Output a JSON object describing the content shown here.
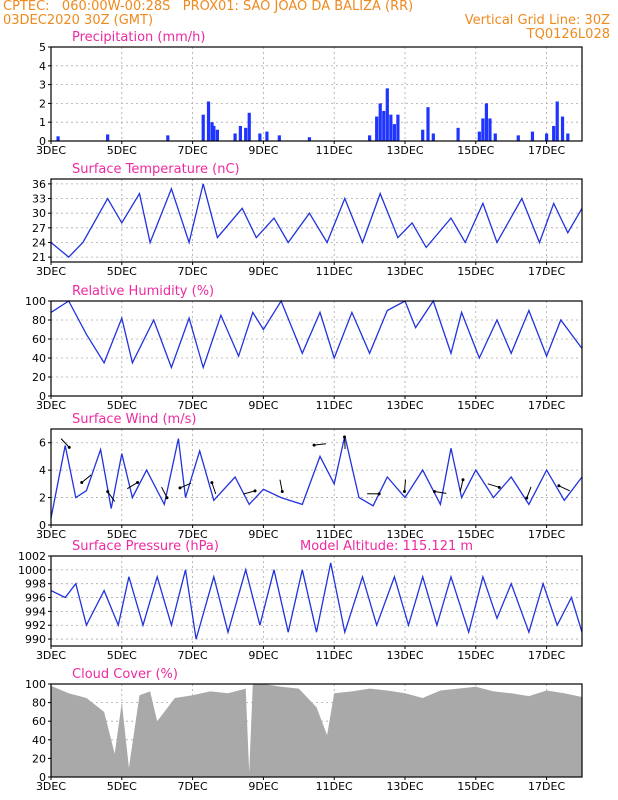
{
  "header": {
    "line1_left": "CPTEC:   060:00W-00:28S   PROX01: SAO JOAO DA BALIZA (RR)",
    "line2_left": "03DEC2020 30Z (GMT)",
    "line2_right": "Vertical Grid Line: 30Z",
    "line3_right": "TQ0126L028",
    "model_altitude": "Model Altitude: 115.121 m"
  },
  "colors": {
    "header": "#ee8a1e",
    "title": "#ee2aa0",
    "line": "#2233dd",
    "bar": "#1f35ff",
    "cloud": "#a9a9a9"
  },
  "x_ticks": [
    "3DEC",
    "5DEC",
    "7DEC",
    "9DEC",
    "11DEC",
    "13DEC",
    "15DEC",
    "17DEC"
  ],
  "chart_data": [
    {
      "type": "bar",
      "title": "Precipitation (mm/h)",
      "x_range": [
        "3DEC",
        "18DEC"
      ],
      "ylim": [
        0,
        5
      ],
      "y_ticks": [
        "0",
        "1",
        "2",
        "3",
        "4",
        "5"
      ],
      "x": [
        3.2,
        4.6,
        6.3,
        7.3,
        7.45,
        7.55,
        7.6,
        7.7,
        8.2,
        8.35,
        8.5,
        8.6,
        8.9,
        9.1,
        9.45,
        10.3,
        12.0,
        12.2,
        12.3,
        12.4,
        12.5,
        12.6,
        12.7,
        12.8,
        13.5,
        13.65,
        13.8,
        14.5,
        15.1,
        15.2,
        15.3,
        15.4,
        15.55,
        16.2,
        16.6,
        17.0,
        17.2,
        17.3,
        17.45,
        17.6
      ],
      "values": [
        0.25,
        0.35,
        0.3,
        1.4,
        2.1,
        1.0,
        0.8,
        0.6,
        0.4,
        0.8,
        0.7,
        1.5,
        0.4,
        0.5,
        0.3,
        0.2,
        0.3,
        1.3,
        2.0,
        1.6,
        2.8,
        1.4,
        0.9,
        1.4,
        0.6,
        1.8,
        0.4,
        0.7,
        0.5,
        1.2,
        2.0,
        1.2,
        0.4,
        0.3,
        0.5,
        0.4,
        0.8,
        2.1,
        1.3,
        0.4
      ]
    },
    {
      "type": "line",
      "title": "Surface Temperature (nC)",
      "ylim": [
        20,
        37
      ],
      "y_ticks": [
        "21",
        "24",
        "27",
        "30",
        "33",
        "36"
      ],
      "x": [
        3.0,
        3.5,
        3.9,
        4.6,
        5.0,
        5.5,
        5.8,
        6.4,
        6.9,
        7.3,
        7.7,
        8.4,
        8.8,
        9.3,
        9.7,
        10.3,
        10.8,
        11.3,
        11.8,
        12.3,
        12.8,
        13.2,
        13.6,
        14.3,
        14.7,
        15.2,
        15.6,
        16.3,
        16.8,
        17.2,
        17.6,
        18.0
      ],
      "values": [
        24,
        21,
        24,
        33,
        28,
        34,
        24,
        35,
        24,
        36,
        25,
        31,
        25,
        29,
        24,
        30,
        24,
        33,
        24,
        34,
        25,
        28,
        23,
        29,
        24,
        32,
        24,
        33,
        24,
        32,
        26,
        31
      ]
    },
    {
      "type": "line",
      "title": "Relative Humidity (%)",
      "ylim": [
        0,
        100
      ],
      "y_ticks": [
        "0",
        "20",
        "40",
        "60",
        "80",
        "100"
      ],
      "x": [
        3.0,
        3.5,
        4.0,
        4.5,
        5.0,
        5.3,
        5.9,
        6.4,
        6.9,
        7.3,
        7.8,
        8.3,
        8.7,
        9.0,
        9.5,
        10.1,
        10.6,
        11.0,
        11.5,
        12.0,
        12.5,
        13.0,
        13.3,
        13.8,
        14.3,
        14.6,
        15.1,
        15.6,
        16.0,
        16.5,
        17.0,
        17.4,
        18.0
      ],
      "values": [
        88,
        100,
        65,
        35,
        82,
        35,
        80,
        30,
        82,
        30,
        85,
        42,
        88,
        70,
        100,
        45,
        88,
        40,
        88,
        45,
        90,
        100,
        72,
        100,
        45,
        88,
        40,
        80,
        45,
        90,
        42,
        80,
        50
      ]
    },
    {
      "type": "line",
      "title": "Surface Wind (m/s)",
      "ylim": [
        0,
        7
      ],
      "y_ticks": [
        "0",
        "2",
        "4",
        "6"
      ],
      "x": [
        3.0,
        3.4,
        3.7,
        4.0,
        4.4,
        4.7,
        5.0,
        5.3,
        5.7,
        6.2,
        6.6,
        6.8,
        7.2,
        7.6,
        8.2,
        8.6,
        9.0,
        9.5,
        10.1,
        10.6,
        11.0,
        11.3,
        11.7,
        12.1,
        12.5,
        13.0,
        13.5,
        14.0,
        14.3,
        14.6,
        15.0,
        15.5,
        16.0,
        16.5,
        17.0,
        17.5,
        18.0
      ],
      "values": [
        0.5,
        5.8,
        2.0,
        2.5,
        5.5,
        1.2,
        5.2,
        2.0,
        4.0,
        1.5,
        6.3,
        2.0,
        5.4,
        1.8,
        3.5,
        1.5,
        2.6,
        2.0,
        1.5,
        5.0,
        3.0,
        6.5,
        2.0,
        1.4,
        3.5,
        2.0,
        4.0,
        1.5,
        5.6,
        2.0,
        4.0,
        2.0,
        3.5,
        1.5,
        4.0,
        1.8,
        3.5
      ]
    },
    {
      "type": "line",
      "title": "Surface Pressure (hPa)",
      "ylim": [
        989,
        1002
      ],
      "y_ticks": [
        "990",
        "992",
        "994",
        "996",
        "998",
        "1000",
        "1002"
      ],
      "x": [
        3.0,
        3.4,
        3.7,
        4.0,
        4.5,
        4.9,
        5.2,
        5.6,
        6.0,
        6.4,
        6.8,
        7.1,
        7.6,
        8.0,
        8.5,
        8.9,
        9.3,
        9.7,
        10.1,
        10.5,
        10.9,
        11.3,
        11.8,
        12.2,
        12.7,
        13.1,
        13.5,
        13.9,
        14.3,
        14.8,
        15.2,
        15.6,
        16.0,
        16.5,
        16.9,
        17.3,
        17.7,
        18.0
      ],
      "values": [
        997,
        996,
        998,
        992,
        997,
        992,
        999,
        992,
        999,
        992,
        1000,
        990,
        999,
        991,
        1000,
        992,
        1000,
        991,
        1000,
        991,
        1001,
        991,
        999,
        992,
        999,
        992,
        999,
        992,
        999,
        991,
        999,
        993,
        998,
        991,
        998,
        992,
        996,
        991
      ]
    },
    {
      "type": "area",
      "title": "Cloud Cover (%)",
      "ylim": [
        0,
        100
      ],
      "y_ticks": [
        "0",
        "20",
        "40",
        "60",
        "80",
        "100"
      ],
      "x": [
        3.0,
        3.5,
        4.0,
        4.5,
        4.8,
        5.0,
        5.2,
        5.5,
        5.8,
        6.0,
        6.5,
        7.0,
        7.5,
        8.0,
        8.5,
        8.6,
        8.7,
        9.0,
        9.5,
        10.0,
        10.5,
        10.8,
        11.0,
        11.5,
        12.0,
        12.5,
        13.0,
        13.5,
        14.0,
        14.5,
        15.0,
        15.5,
        16.0,
        16.5,
        17.0,
        17.5,
        18.0
      ],
      "values": [
        98,
        90,
        85,
        70,
        25,
        80,
        10,
        88,
        92,
        60,
        85,
        88,
        92,
        90,
        95,
        5,
        100,
        100,
        97,
        95,
        75,
        45,
        90,
        92,
        95,
        93,
        90,
        85,
        93,
        95,
        97,
        92,
        90,
        87,
        93,
        90,
        86
      ]
    }
  ]
}
